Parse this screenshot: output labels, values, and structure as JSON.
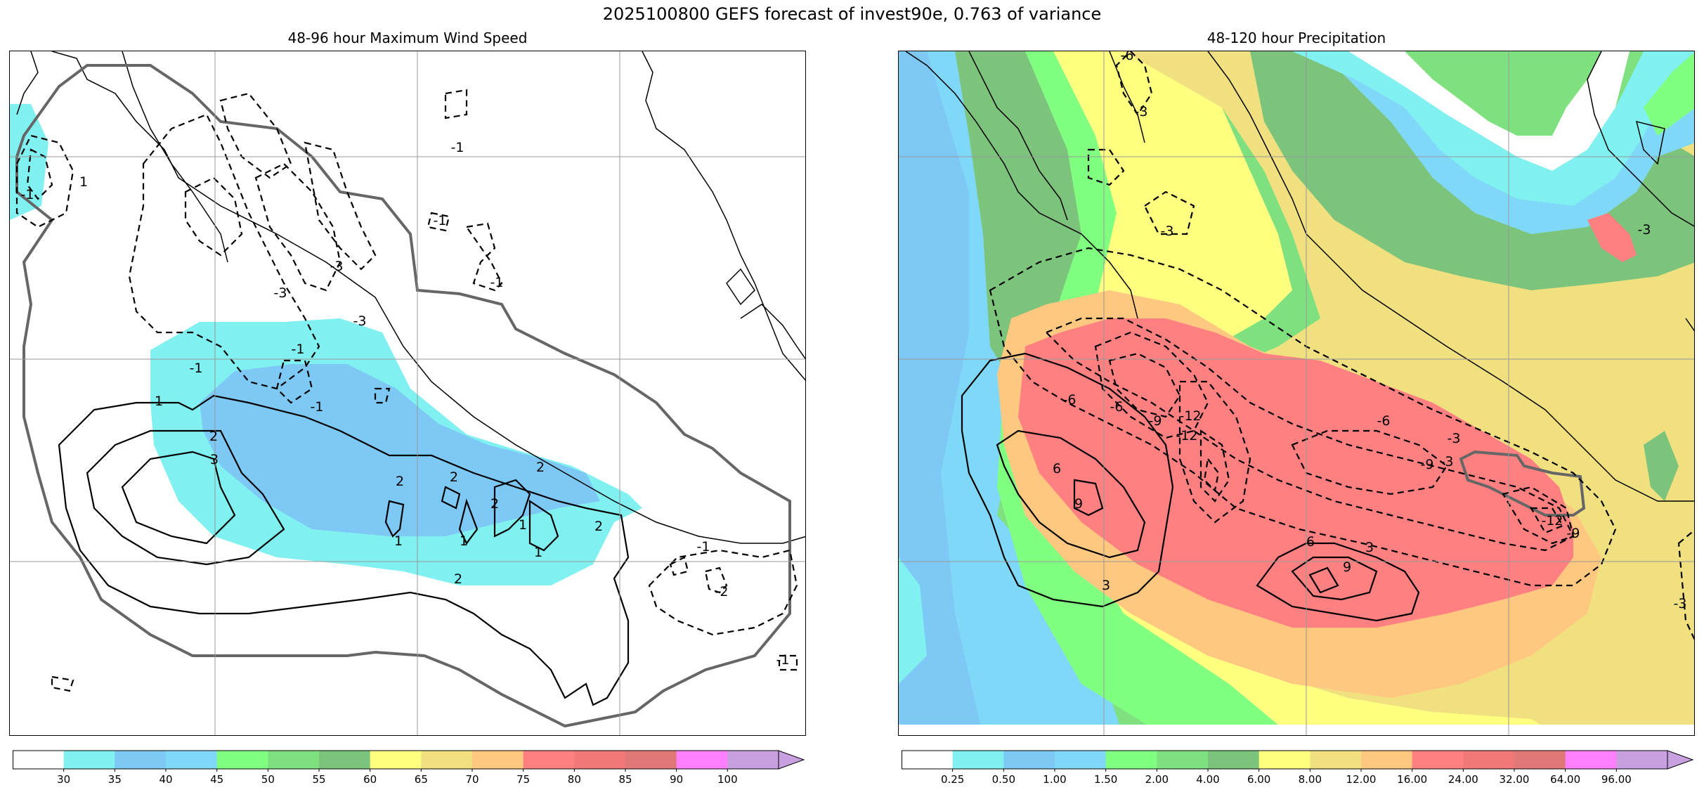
{
  "figure": {
    "title": "2025100800 GEFS forecast of invest90e, 0.763 of variance"
  },
  "panels": [
    {
      "title": "48-96 hour Maximum Wind Speed",
      "colorbar": {
        "labels": [
          "30",
          "35",
          "40",
          "45",
          "50",
          "55",
          "60",
          "65",
          "70",
          "75",
          "80",
          "85",
          "90",
          "100"
        ],
        "colors": [
          "#ffffff",
          "#80f0f0",
          "#7dc8f5",
          "#80d8f8",
          "#80ff80",
          "#7ee07e",
          "#7cc47c",
          "#ffff80",
          "#f0e080",
          "#ffc880",
          "#ff8080",
          "#f07878",
          "#e07878",
          "#ff80ff",
          "#c8a0e0"
        ]
      },
      "contour_labels": [
        "1",
        "-1",
        "1",
        "2",
        "3",
        "-3",
        "-3",
        "-3",
        "-1",
        "-1",
        "-1",
        "-1",
        "-1",
        "-1",
        "2",
        "2",
        "2",
        "2",
        "1",
        "1",
        "2",
        "-2",
        "-1",
        "1",
        "-1",
        "1",
        "2"
      ]
    },
    {
      "title": "48-120 hour Precipitation",
      "colorbar": {
        "labels": [
          "0.25",
          "0.50",
          "1.00",
          "1.50",
          "2.00",
          "4.00",
          "6.00",
          "8.00",
          "12.00",
          "16.00",
          "24.00",
          "32.00",
          "64.00",
          "96.00"
        ],
        "colors": [
          "#ffffff",
          "#80f0f0",
          "#7dc8f5",
          "#80d8f8",
          "#80ff80",
          "#7ee07e",
          "#7cc47c",
          "#ffff80",
          "#f0e080",
          "#ffc880",
          "#ff8080",
          "#f07878",
          "#e07878",
          "#ff80ff",
          "#c8a0e0"
        ]
      },
      "contour_labels": [
        "-6",
        "-3",
        "-3",
        "-3",
        "-6",
        "-9",
        "-12",
        "-6",
        "-3",
        "-9",
        "-12",
        "-12",
        "-9",
        "6",
        "9",
        "3",
        "6",
        "9",
        "3",
        "-6",
        "-3",
        "-3"
      ]
    }
  ]
}
